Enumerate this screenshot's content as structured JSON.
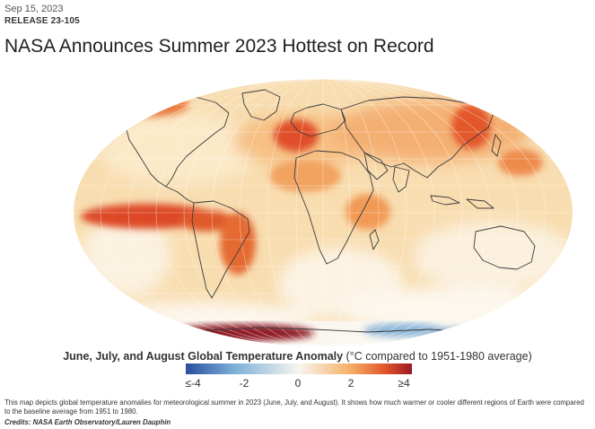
{
  "article": {
    "date": "Sep 15, 2023",
    "release": "RELEASE  23-105",
    "title": "NASA Announces Summer 2023 Hottest on Record"
  },
  "map": {
    "image_name": "global-temperature-anomaly-map"
  },
  "legend": {
    "title_bold": "June, July, and August Global Temperature Anomaly",
    "title_rest": " (°C compared to 1951-1980 average)",
    "ticks": [
      "≤-4",
      "-2",
      "0",
      "2",
      "≥4"
    ],
    "colors": [
      "#2a4fa0",
      "#7fb1d8",
      "#f7f6ef",
      "#f6b36a",
      "#e2562a",
      "#9b1a25"
    ]
  },
  "caption": {
    "text": "This map depicts global temperature anomalies for meteorological summer in 2023 (June, July, and August). It shows how much warmer or cooler different regions of Earth were compared to the baseline average from 1951 to 1980.",
    "credit": "Credits: NASA Earth Observatory/Lauren Dauphin"
  }
}
